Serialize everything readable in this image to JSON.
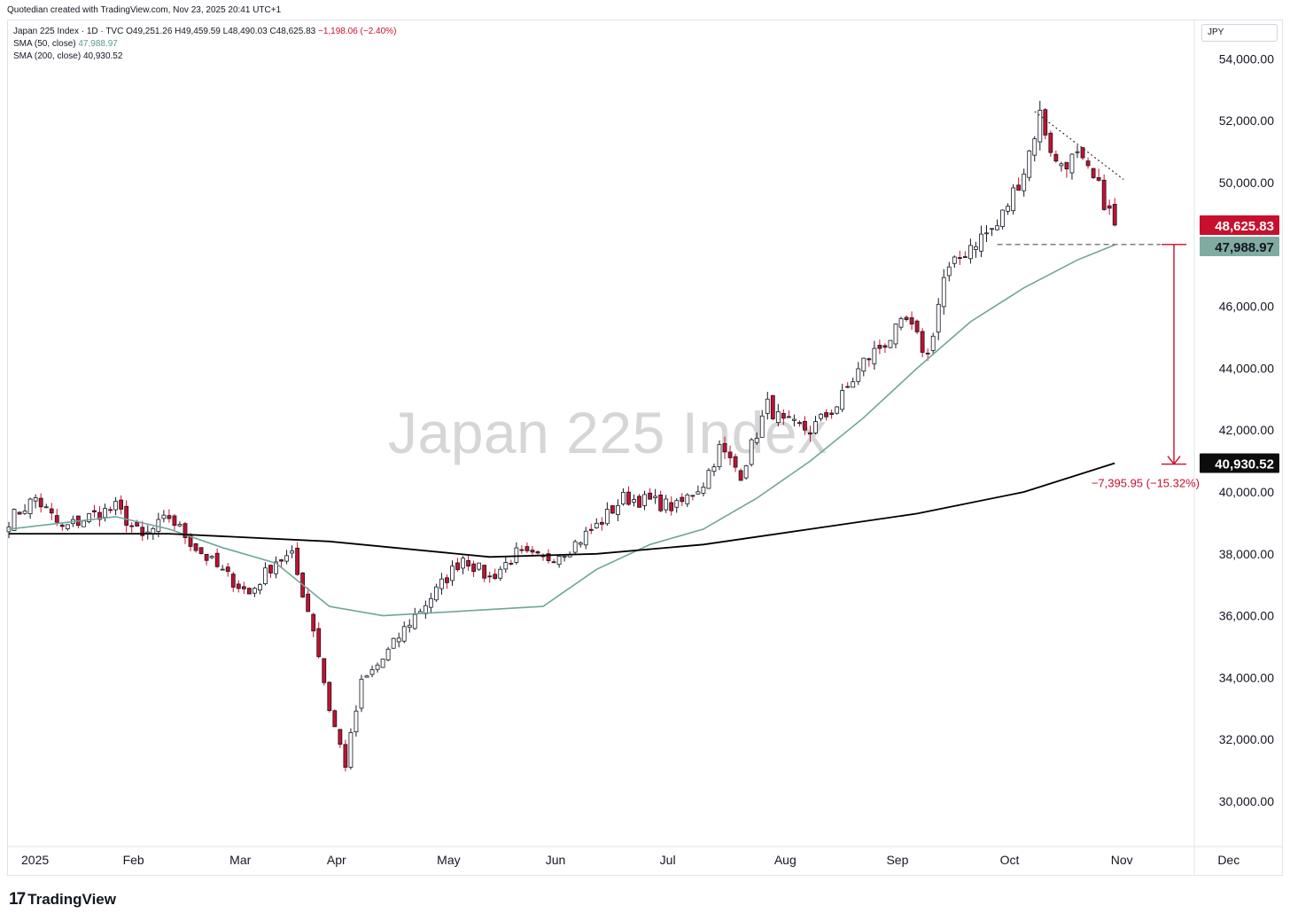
{
  "header": {
    "credit": "Quotedian created with TradingView.com, Nov 23, 2025 20:41 UTC+1",
    "symbol_line": "Japan 225 Index · 1D · TVC",
    "ohlc": {
      "o": "O49,251.26",
      "h": "H49,459.59",
      "l": "L48,490.03",
      "c": "C48,625.83",
      "chg": "−1,198.06 (−2.40%)"
    },
    "sma50_label": "SMA (50, close)",
    "sma50_value": "47,988.97",
    "sma200_label": "SMA (200, close)",
    "sma200_value": "40,930.52"
  },
  "watermark": "Japan 225 Index",
  "currency": "JPY",
  "footer": {
    "brand": "TradingView",
    "logo_icon": "tradingview-logo-icon"
  },
  "colors": {
    "up_body": "#ffffff",
    "down_body": "#c8102e",
    "wick": "#131722",
    "sma50": "#6fa59b",
    "sma200": "#000000",
    "annotation": "#c8102e",
    "trendline": "#333333"
  },
  "chart_data": {
    "type": "candlestick",
    "title": "Japan 225 Index",
    "interval": "1D",
    "ylim": [
      29000,
      55000
    ],
    "y_ticks": [
      30000,
      32000,
      34000,
      36000,
      38000,
      40000,
      42000,
      44000,
      46000,
      48000,
      50000,
      52000,
      54000
    ],
    "y_tick_labels": [
      "30,000.00",
      "32,000.00",
      "34,000.00",
      "36,000.00",
      "38,000.00",
      "",
      "42,000.00",
      "44,000.00",
      "46,000.00",
      "",
      "50,000.00",
      "52,000.00",
      "54,000.00"
    ],
    "x_labels": [
      {
        "label": "2025",
        "month": 0
      },
      {
        "label": "Feb",
        "month": 1
      },
      {
        "label": "Mar",
        "month": 2
      },
      {
        "label": "Apr",
        "month": 3
      },
      {
        "label": "May",
        "month": 4
      },
      {
        "label": "Jun",
        "month": 5
      },
      {
        "label": "Jul",
        "month": 6
      },
      {
        "label": "Aug",
        "month": 7
      },
      {
        "label": "Sep",
        "month": 8
      },
      {
        "label": "Oct",
        "month": 9
      },
      {
        "label": "Nov",
        "month": 10
      },
      {
        "label": "Dec",
        "month": 11
      }
    ],
    "close_anchors": [
      [
        0,
        39100
      ],
      [
        5,
        39800
      ],
      [
        10,
        38800
      ],
      [
        15,
        39200
      ],
      [
        20,
        39500
      ],
      [
        25,
        38500
      ],
      [
        30,
        39200
      ],
      [
        35,
        38200
      ],
      [
        40,
        37400
      ],
      [
        45,
        36700
      ],
      [
        50,
        37800
      ],
      [
        53,
        37900
      ],
      [
        57,
        35600
      ],
      [
        60,
        33000
      ],
      [
        63,
        31200
      ],
      [
        66,
        33800
      ],
      [
        70,
        34600
      ],
      [
        75,
        35800
      ],
      [
        80,
        36800
      ],
      [
        85,
        37900
      ],
      [
        90,
        37200
      ],
      [
        95,
        38000
      ],
      [
        100,
        37800
      ],
      [
        105,
        38200
      ],
      [
        110,
        38900
      ],
      [
        115,
        39800
      ],
      [
        120,
        39700
      ],
      [
        125,
        39500
      ],
      [
        130,
        40300
      ],
      [
        133,
        41400
      ],
      [
        137,
        40600
      ],
      [
        142,
        42800
      ],
      [
        145,
        42200
      ],
      [
        150,
        42000
      ],
      [
        155,
        42800
      ],
      [
        160,
        44200
      ],
      [
        165,
        45000
      ],
      [
        168,
        45500
      ],
      [
        172,
        44400
      ],
      [
        175,
        46900
      ],
      [
        180,
        48000
      ],
      [
        185,
        48600
      ],
      [
        190,
        50400
      ],
      [
        193,
        52200
      ],
      [
        196,
        50600
      ],
      [
        200,
        50800
      ],
      [
        204,
        49800
      ],
      [
        207,
        48626
      ]
    ],
    "series": [
      {
        "name": "SMA (50, close)",
        "value_last": 47988.97,
        "points": [
          [
            0,
            38800
          ],
          [
            20,
            39200
          ],
          [
            30,
            38800
          ],
          [
            40,
            38200
          ],
          [
            50,
            37700
          ],
          [
            60,
            36300
          ],
          [
            70,
            36000
          ],
          [
            80,
            36100
          ],
          [
            100,
            36300
          ],
          [
            110,
            37500
          ],
          [
            120,
            38300
          ],
          [
            130,
            38800
          ],
          [
            140,
            39800
          ],
          [
            150,
            41000
          ],
          [
            160,
            42400
          ],
          [
            170,
            44000
          ],
          [
            180,
            45500
          ],
          [
            190,
            46600
          ],
          [
            200,
            47500
          ],
          [
            207,
            47989
          ]
        ]
      },
      {
        "name": "SMA (200, close)",
        "value_last": 40930.52,
        "points": [
          [
            0,
            38650
          ],
          [
            30,
            38650
          ],
          [
            60,
            38400
          ],
          [
            90,
            37900
          ],
          [
            110,
            38000
          ],
          [
            130,
            38300
          ],
          [
            150,
            38800
          ],
          [
            170,
            39300
          ],
          [
            190,
            40000
          ],
          [
            207,
            40931
          ]
        ]
      }
    ],
    "price_labels": [
      {
        "value": 48625.83,
        "text": "48,625.83",
        "color": "#c8102e",
        "text_color": "#ffffff"
      },
      {
        "value": 47988.97,
        "text": "47,988.97",
        "color": "#80aba1",
        "text_color": "#131722"
      },
      {
        "value": 40930.52,
        "text": "40,930.52",
        "color": "#0c0c0c",
        "text_color": "#ffffff"
      }
    ],
    "annotations": {
      "support_level": 48000,
      "measure_from": 48000,
      "measure_to": 40900,
      "measure_text": "−7,395.95 (−15.32%)",
      "trendline": [
        [
          192,
          52300
        ],
        [
          207,
          50100
        ]
      ]
    }
  }
}
